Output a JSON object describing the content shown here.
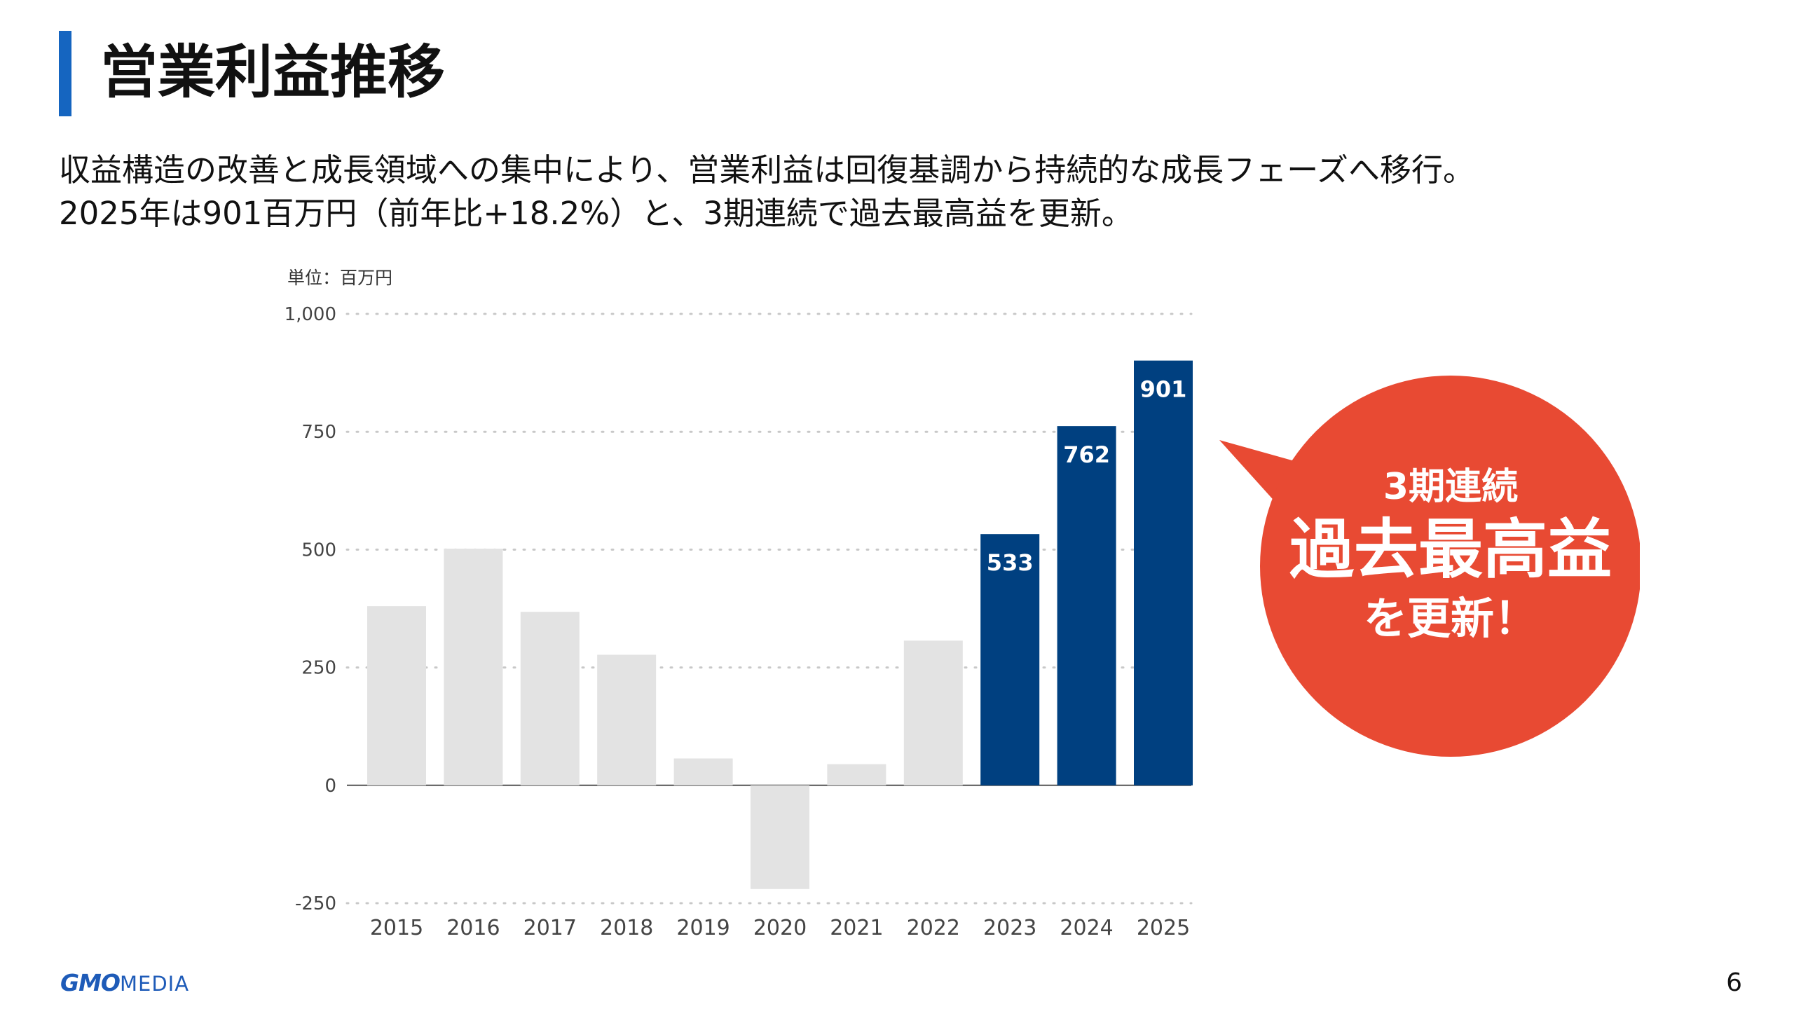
{
  "header": {
    "title": "営業利益推移"
  },
  "lead": {
    "line1": "収益構造の改善と成長領域への集中により、営業利益は回復基調から持続的な成長フェーズへ移行。",
    "line2": "2025年は901百万円（前年比+18.2%）と、3期連続で過去最高益を更新。"
  },
  "chart_data": {
    "type": "bar",
    "unit_label": "単位：百万円",
    "categories": [
      "2015",
      "2016",
      "2017",
      "2018",
      "2019",
      "2020",
      "2021",
      "2022",
      "2023",
      "2024",
      "2025"
    ],
    "values": [
      380,
      502,
      368,
      277,
      57,
      -220,
      45,
      307,
      533,
      762,
      901
    ],
    "data_labels": [
      "",
      "",
      "",
      "",
      "",
      "",
      "",
      "",
      "533",
      "762",
      "901"
    ],
    "highlighted": [
      "2023",
      "2024",
      "2025"
    ],
    "ylim": [
      -250,
      1000
    ],
    "yticks": [
      1000,
      750,
      500,
      250,
      0,
      -250
    ],
    "ytick_labels": [
      "1,000",
      "750",
      "500",
      "250",
      "0",
      "-250"
    ],
    "grid": "dotted horizontal",
    "colors": {
      "highlight": "#004080",
      "base": "#e3e3e3",
      "grid": "#c8c8c8",
      "zero_line": "#555555"
    }
  },
  "callout": {
    "line1": "3期連続",
    "line2": "過去最高益",
    "line3": "を更新！",
    "color": "#e84a33"
  },
  "footer": {
    "logo_bold": "GMO",
    "logo_light": "MEDIA",
    "page_number": "6"
  }
}
